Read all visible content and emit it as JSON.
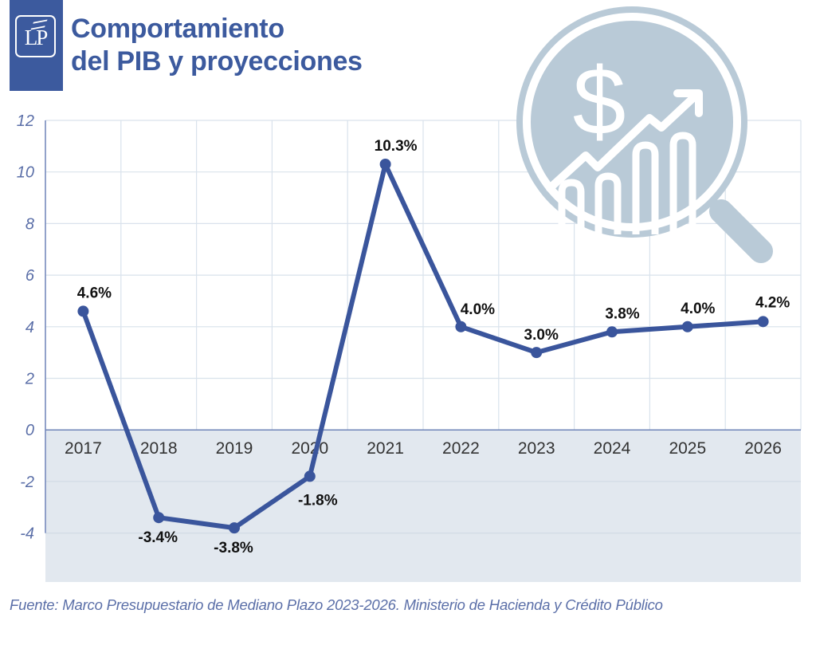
{
  "header": {
    "logo_text": "LP",
    "title_line1": "Comportamiento",
    "title_line2": "del PIB y proyecciones"
  },
  "decoration": {
    "icon": "magnifier-dollar-growth-icon",
    "icon_color": "#b9cad7"
  },
  "colors": {
    "brand": "#3c5a9e",
    "line": "#3a559c",
    "negative_band": "#e2e8ef",
    "grid": "#d9e2ec"
  },
  "chart_data": {
    "type": "line",
    "title": "Comportamiento del PIB y proyecciones",
    "xlabel": "",
    "ylabel": "",
    "categories": [
      "2017",
      "2018",
      "2019",
      "2020",
      "2021",
      "2022",
      "2023",
      "2024",
      "2025",
      "2026"
    ],
    "series": [
      {
        "name": "PIB",
        "values": [
          4.6,
          -3.4,
          -3.8,
          -1.8,
          10.3,
          4.0,
          3.0,
          3.8,
          4.0,
          4.2
        ],
        "labels": [
          "4.6%",
          "-3.4%",
          "-3.8%",
          "-1.8%",
          "10.3%",
          "4.0%",
          "3.0%",
          "3.8%",
          "4.0%",
          "4.2%"
        ]
      }
    ],
    "yticks": [
      12,
      10,
      8,
      6,
      4,
      2,
      0,
      -2,
      -4
    ],
    "ytick_labels": [
      "12",
      "10",
      "8",
      "6",
      "4",
      "2",
      "0",
      "-2",
      "-4"
    ],
    "ylim": [
      -5.9,
      12
    ],
    "grid": true,
    "legend": "none"
  },
  "footer": {
    "source": "Fuente: Marco Presupuestario de Mediano Plazo 2023-2026. Ministerio de Hacienda y Crédito Público"
  }
}
